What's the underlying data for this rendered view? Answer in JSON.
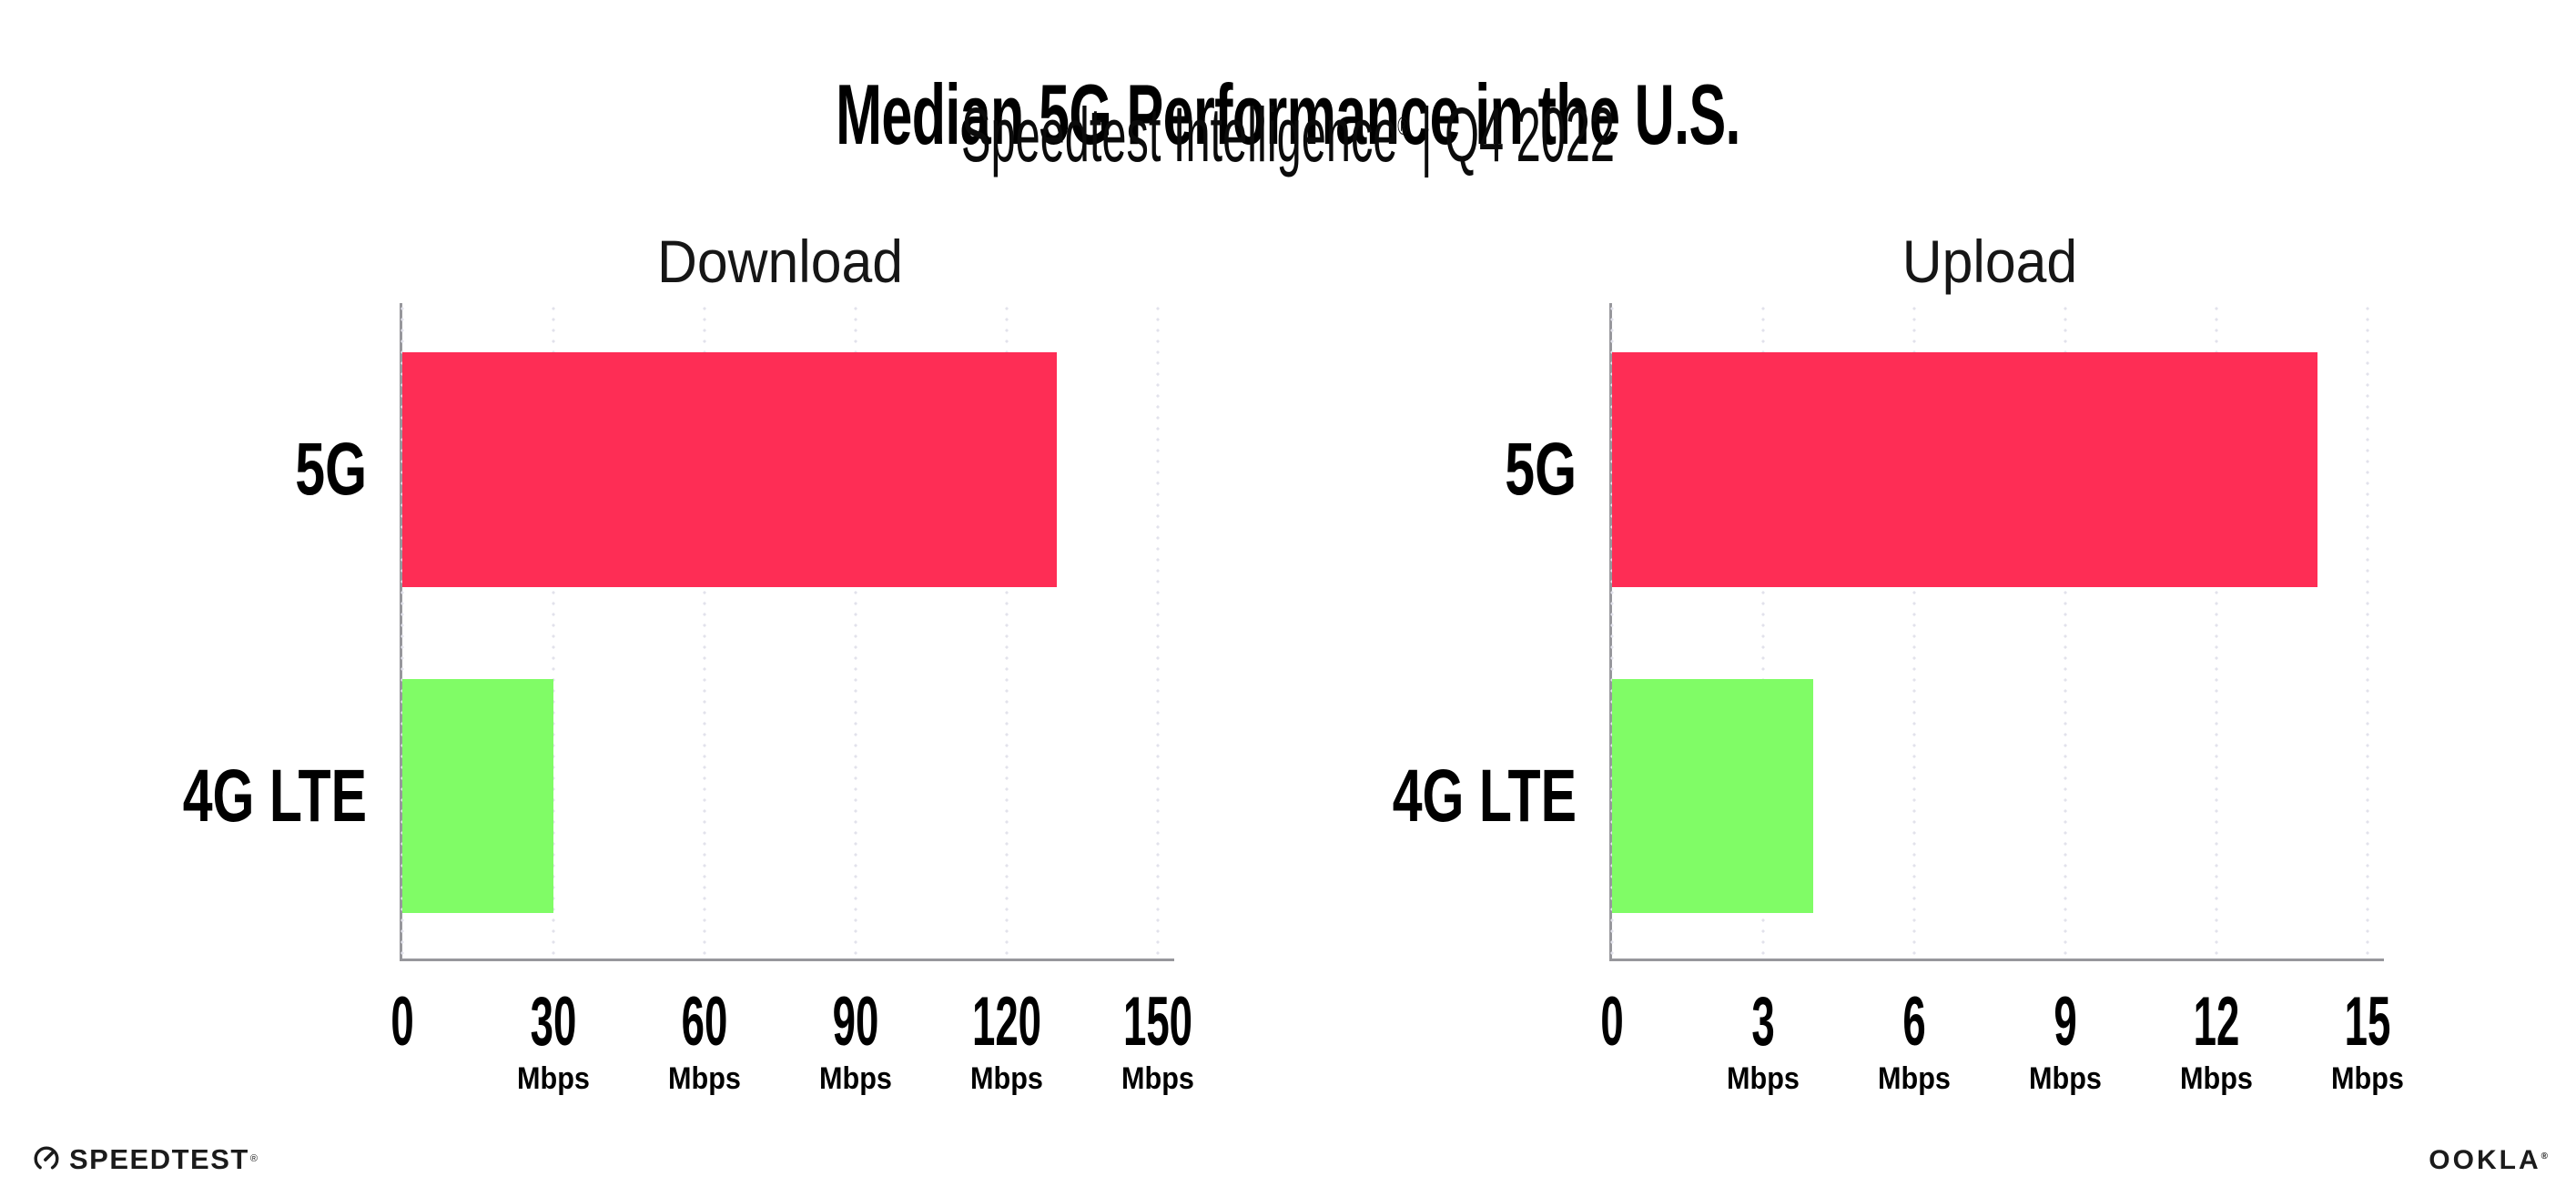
{
  "header": {
    "title": "Median 5G Performance in the U.S.",
    "subtitle_brand": "Speedtest Intelligence",
    "subtitle_reg": "®",
    "subtitle_rest": " | Q4 2022"
  },
  "chart_data": [
    {
      "type": "bar",
      "orientation": "horizontal",
      "title": "Download",
      "categories": [
        "5G",
        "4G LTE"
      ],
      "values": [
        130,
        30
      ],
      "unit": "Mbps",
      "xlabel": "",
      "ylabel": "",
      "xlim": [
        0,
        150
      ],
      "xticks": [
        0,
        30,
        60,
        90,
        120,
        150
      ],
      "grid": "vertical-dotted",
      "legend": "none",
      "bar_colors": [
        "#FE2D55",
        "#80FC66"
      ]
    },
    {
      "type": "bar",
      "orientation": "horizontal",
      "title": "Upload",
      "categories": [
        "5G",
        "4G LTE"
      ],
      "values": [
        14,
        4
      ],
      "unit": "Mbps",
      "xlabel": "",
      "ylabel": "",
      "xlim": [
        0,
        15
      ],
      "xticks": [
        0,
        3,
        6,
        9,
        12,
        15
      ],
      "grid": "vertical-dotted",
      "legend": "none",
      "bar_colors": [
        "#FE2D55",
        "#80FC66"
      ]
    }
  ],
  "colors": {
    "bar_5g": "#FE2D55",
    "bar_4g_lte": "#80FC66",
    "axis_line": "#97979C",
    "gridline": "#E2E2EB",
    "text": "#000000"
  },
  "footer": {
    "speedtest_logo_text": "SPEEDTEST",
    "speedtest_reg": "®",
    "ookla_logo_text": "OOKLA",
    "ookla_reg": "®"
  }
}
